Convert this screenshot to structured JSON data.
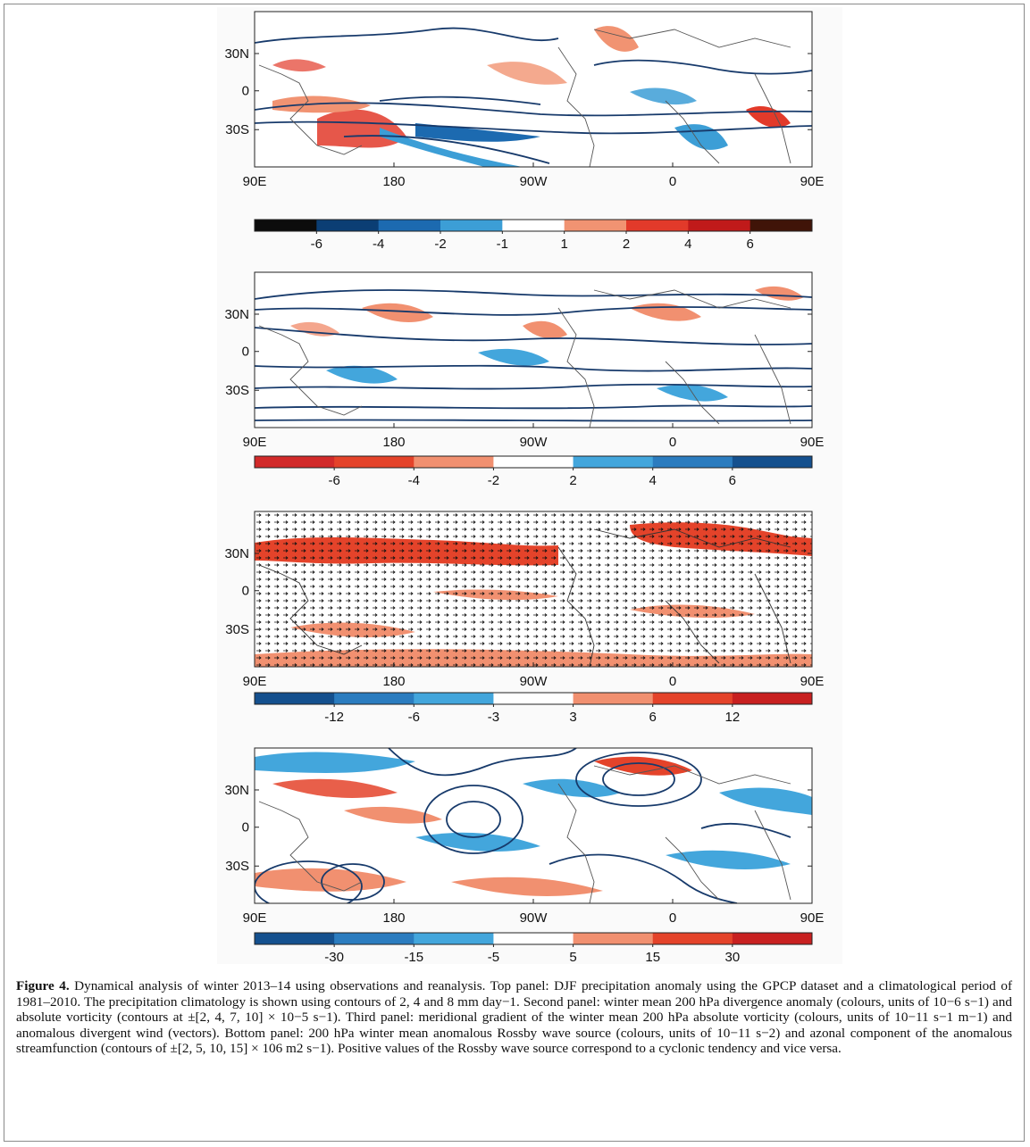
{
  "panels": [
    {
      "id": "precip",
      "lat_labels": [
        "30N",
        "0",
        "30S"
      ],
      "lon_labels": [
        "90E",
        "180",
        "90W",
        "0",
        "90E"
      ],
      "colorbar": {
        "colors": [
          "#0c0c0c",
          "#0b3e74",
          "#1c6ab0",
          "#3c9ed6",
          "#ffffff",
          "#f19372",
          "#e23a2a",
          "#c01a1a",
          "#401408"
        ],
        "labels": [
          "-6",
          "-4",
          "-2",
          "-1",
          "1",
          "2",
          "4",
          "6"
        ]
      }
    },
    {
      "id": "divergence",
      "lat_labels": [
        "30N",
        "0",
        "30S"
      ],
      "lon_labels": [
        "90E",
        "180",
        "90W",
        "0",
        "90E"
      ],
      "colorbar": {
        "colors": [
          "#d22a2a",
          "#e4432a",
          "#f19070",
          "#ffffff",
          "#43a6dc",
          "#2b7cbf",
          "#14508e"
        ],
        "labels": [
          "-6",
          "-4",
          "-2",
          "2",
          "4",
          "6"
        ]
      }
    },
    {
      "id": "vorticity-gradient",
      "lat_labels": [
        "30N",
        "0",
        "30S"
      ],
      "lon_labels": [
        "90E",
        "180",
        "90W",
        "0",
        "90E"
      ],
      "colorbar": {
        "colors": [
          "#14508e",
          "#2b7cbf",
          "#43a6dc",
          "#ffffff",
          "#f19070",
          "#e4432a",
          "#c82020"
        ],
        "labels": [
          "-12",
          "-6",
          "-3",
          "3",
          "6",
          "12"
        ]
      }
    },
    {
      "id": "rossby-source",
      "lat_labels": [
        "30N",
        "0",
        "30S"
      ],
      "lon_labels": [
        "90E",
        "180",
        "90W",
        "0",
        "90E"
      ],
      "colorbar": {
        "colors": [
          "#14508e",
          "#2b7cbf",
          "#43a6dc",
          "#ffffff",
          "#f19070",
          "#e4432a",
          "#c82020"
        ],
        "labels": [
          "-30",
          "-15",
          "-5",
          "5",
          "15",
          "30"
        ]
      }
    }
  ],
  "caption": {
    "label": "Figure 4.",
    "text": "Dynamical analysis of winter 2013–14 using observations and reanalysis. Top panel: DJF precipitation anomaly using the GPCP dataset and a climatological period of 1981–2010. The precipitation climatology is shown using contours of 2, 4 and 8 mm day−1. Second panel: winter mean 200 hPa divergence anomaly (colours, units of 10−6 s−1) and absolute vorticity (contours at ±[2, 4, 7, 10] × 10−5 s−1). Third panel: meridional gradient of the winter mean 200 hPa absolute vorticity (colours, units of 10−11 s−1 m−1) and anomalous divergent wind (vectors). Bottom panel: 200 hPa winter mean anomalous Rossby wave source (colours, units of 10−11 s−2) and azonal component of the anomalous streamfunction (contours of ±[2, 5, 10, 15] × 106 m2 s−1). Positive values of the Rossby wave source correspond to a cyclonic tendency and vice versa."
  }
}
